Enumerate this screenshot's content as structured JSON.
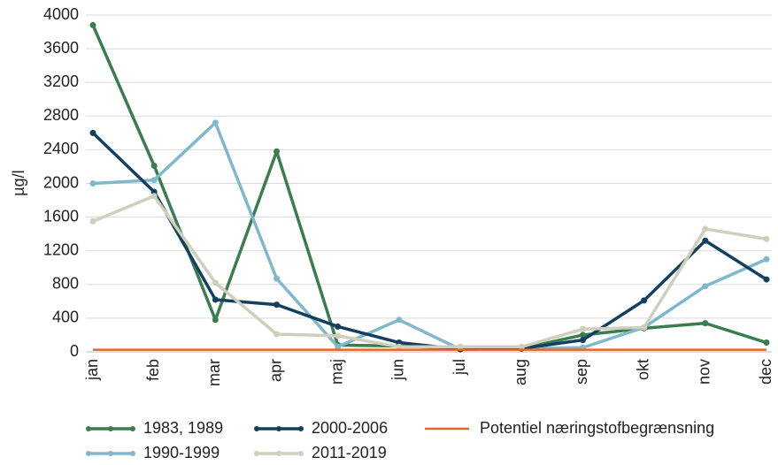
{
  "chart_data": {
    "type": "line",
    "y_label": "µg/l",
    "categories": [
      "jan",
      "feb",
      "mar",
      "apr",
      "maj",
      "jun",
      "jul",
      "aug",
      "sep",
      "okt",
      "nov",
      "dec"
    ],
    "series": [
      {
        "name": "1983, 1989",
        "color": "#3a7d4f",
        "markers": true,
        "values": [
          3880,
          2210,
          380,
          2380,
          80,
          70,
          40,
          40,
          200,
          280,
          340,
          110
        ]
      },
      {
        "name": "1990-1999",
        "color": "#7fb8cc",
        "markers": true,
        "values": [
          2000,
          2040,
          2720,
          870,
          60,
          380,
          30,
          40,
          50,
          290,
          780,
          1100
        ]
      },
      {
        "name": "2000-2006",
        "color": "#12405e",
        "markers": true,
        "values": [
          2600,
          1900,
          620,
          560,
          300,
          110,
          30,
          40,
          140,
          610,
          1320,
          860
        ]
      },
      {
        "name": "2011-2019",
        "color": "#cfd0bc",
        "markers": true,
        "values": [
          1550,
          1850,
          820,
          210,
          190,
          60,
          60,
          60,
          270,
          290,
          1460,
          1340
        ]
      },
      {
        "name": "Potentiel næringstofbegrænsning",
        "color": "#e0672f",
        "markers": false,
        "values": [
          25,
          25,
          25,
          25,
          25,
          25,
          25,
          25,
          25,
          25,
          25,
          25
        ]
      }
    ],
    "ylim": [
      0,
      4000
    ],
    "yticks": [
      0,
      400,
      800,
      1200,
      1600,
      2000,
      2400,
      2800,
      3200,
      3600,
      4000
    ],
    "grid": true
  }
}
